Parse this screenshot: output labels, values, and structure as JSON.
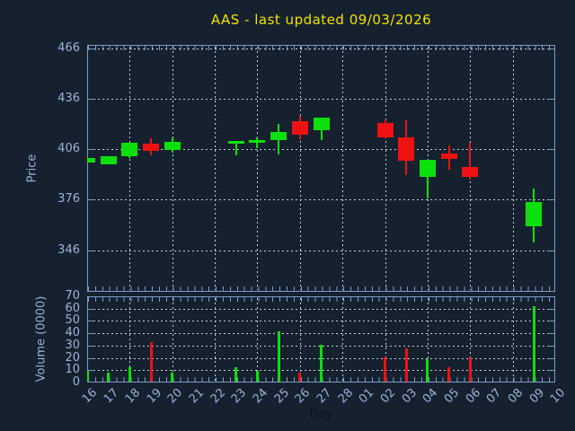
{
  "title": "AAS - last updated 09/03/2026",
  "colors": {
    "background": "#15212f",
    "title": "#f3e300",
    "frame": "#7a9cc8",
    "tick_text": "#9db2d6",
    "grid": "#c6cdd8",
    "up": "#0ce00c",
    "down": "#ee1212",
    "day_label": "#0a1420"
  },
  "chart_data": [
    {
      "type": "candlestick",
      "title": "AAS - last updated 09/03/2026",
      "ylabel": "Price",
      "ylim": [
        321,
        468
      ],
      "yticks": [
        346,
        376,
        406,
        436,
        466
      ],
      "grid": true,
      "categories": [
        "16",
        "17",
        "18",
        "19",
        "20",
        "21",
        "22",
        "23",
        "24",
        "25",
        "26",
        "27",
        "28",
        "01",
        "02",
        "03",
        "04",
        "05",
        "06",
        "07",
        "08",
        "09",
        "10"
      ],
      "gridline_category_step": 2,
      "candles": [
        {
          "open": 398,
          "high": 401,
          "low": 398,
          "close": 400.5
        },
        {
          "open": 397,
          "high": 402,
          "low": 397,
          "close": 402
        },
        {
          "open": 402,
          "high": 409.5,
          "low": 400.5,
          "close": 409.5
        },
        {
          "open": 409,
          "high": 412.5,
          "low": 402.5,
          "close": 405
        },
        {
          "open": 405.5,
          "high": 413,
          "low": 404,
          "close": 410.5
        },
        null,
        null,
        {
          "open": 411,
          "high": 411,
          "low": 402.5,
          "close": 411
        },
        {
          "open": 411.5,
          "high": 413,
          "low": 406.5,
          "close": 411.5
        },
        {
          "open": 411.5,
          "high": 421,
          "low": 403,
          "close": 416
        },
        {
          "open": 422.5,
          "high": 425.5,
          "low": 412,
          "close": 414.5
        },
        {
          "open": 417,
          "high": 424.5,
          "low": 411.5,
          "close": 424.5
        },
        null,
        null,
        {
          "open": 421.5,
          "high": 423.5,
          "low": 412.5,
          "close": 413
        },
        {
          "open": 413,
          "high": 423,
          "low": 390.5,
          "close": 399
        },
        {
          "open": 389.5,
          "high": 399.5,
          "low": 376.5,
          "close": 399.5
        },
        {
          "open": 403.5,
          "high": 408,
          "low": 393.5,
          "close": 400
        },
        {
          "open": 395.5,
          "high": 410,
          "low": 388,
          "close": 389.5
        },
        null,
        null,
        {
          "open": 360,
          "high": 382.5,
          "low": 350.5,
          "close": 374.5
        },
        null
      ]
    },
    {
      "type": "bar",
      "ylabel": "Volume (0000)",
      "xlabel": "Day",
      "ylim": [
        0,
        70
      ],
      "yticks": [
        0,
        10,
        20,
        30,
        40,
        50,
        60,
        70
      ],
      "grid": true,
      "categories": [
        "16",
        "17",
        "18",
        "19",
        "20",
        "21",
        "22",
        "23",
        "24",
        "25",
        "26",
        "27",
        "28",
        "01",
        "02",
        "03",
        "04",
        "05",
        "06",
        "07",
        "08",
        "09",
        "10"
      ],
      "values": [
        9,
        7,
        12,
        32,
        7,
        0,
        0,
        12,
        9,
        41,
        7,
        30,
        0,
        0,
        20,
        27,
        18,
        12,
        20,
        0,
        0,
        61,
        0
      ]
    }
  ]
}
